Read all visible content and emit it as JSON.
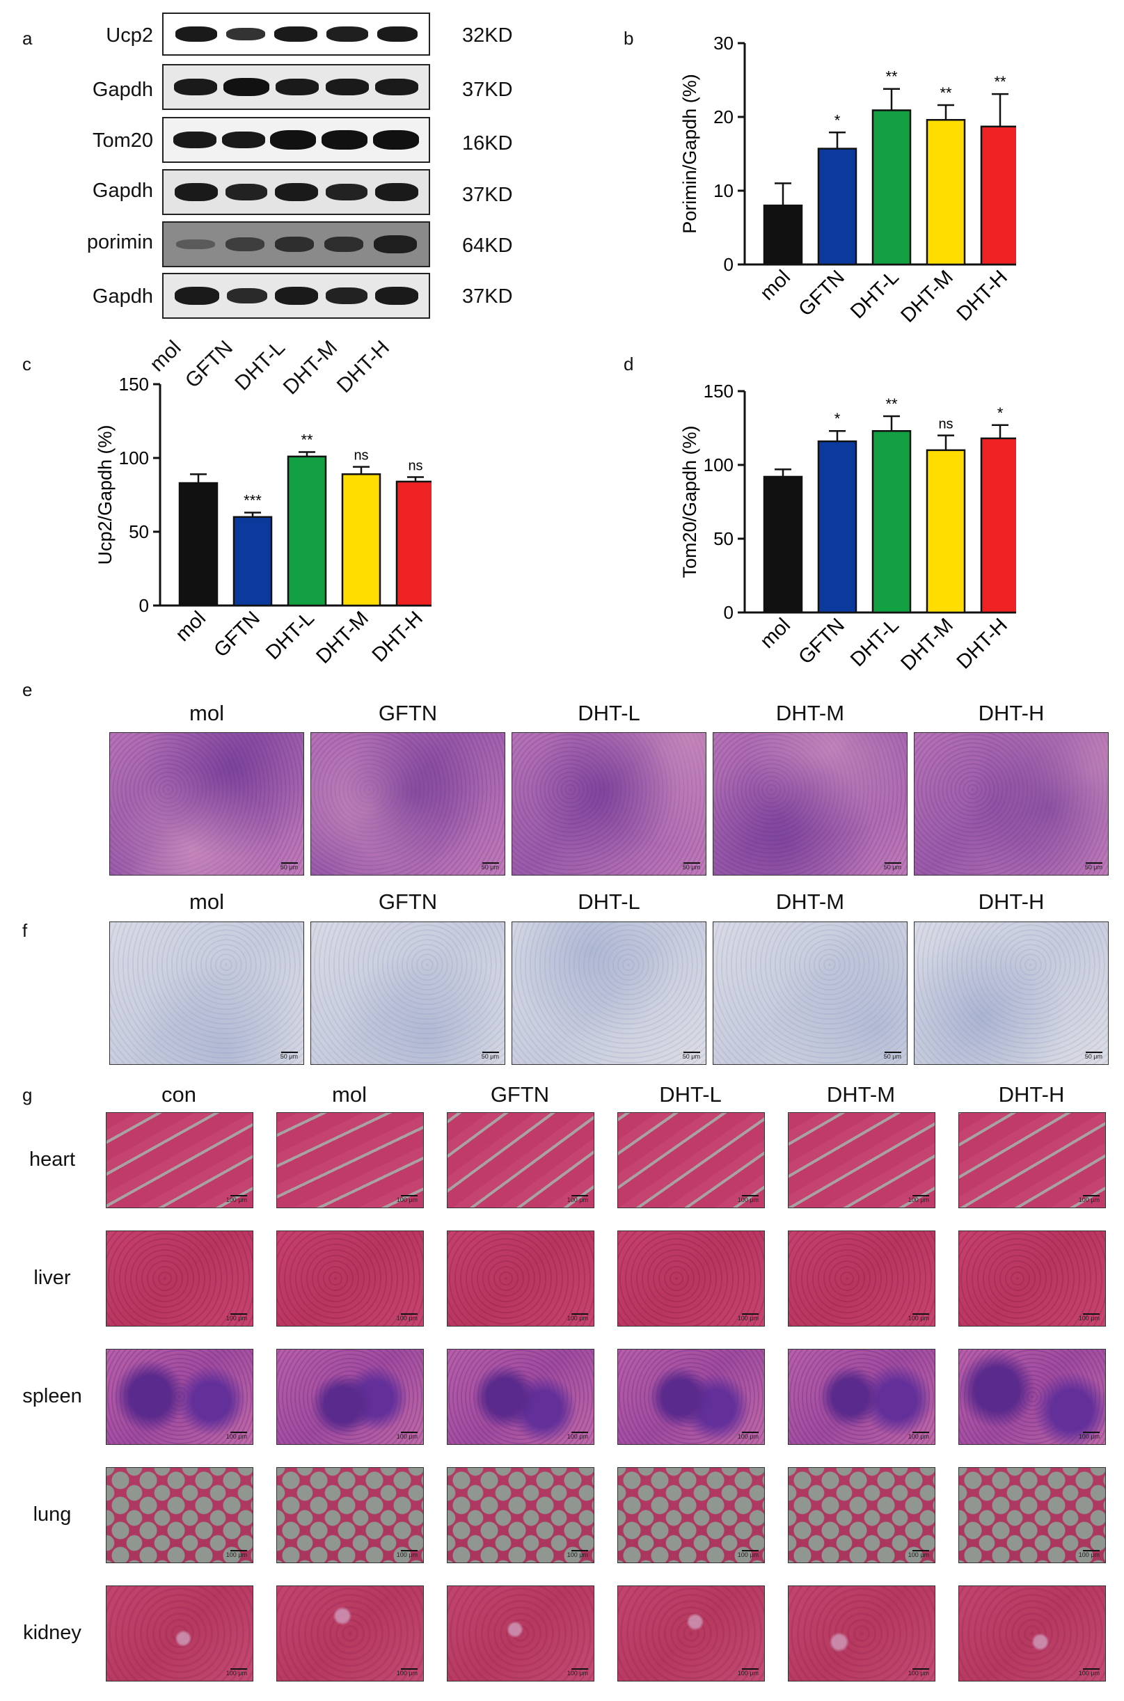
{
  "panels": {
    "a": "a",
    "b": "b",
    "c": "c",
    "d": "d",
    "e": "e",
    "f": "f",
    "g": "g"
  },
  "blot": {
    "rows": [
      {
        "name": "Ucp2",
        "kd": "32KD"
      },
      {
        "name": "Gapdh",
        "kd": "37KD"
      },
      {
        "name": "Tom20",
        "kd": "16KD"
      },
      {
        "name": "Gapdh",
        "kd": "37KD"
      },
      {
        "name": "porimin",
        "kd": "64KD"
      },
      {
        "name": "Gapdh",
        "kd": "37KD"
      }
    ],
    "lanes": [
      "mol",
      "GFTN",
      "DHT-L",
      "DHT-M",
      "DHT-H"
    ]
  },
  "colors": {
    "mol": "#111111",
    "GFTN": "#0b3a9c",
    "DHT-L": "#13a043",
    "DHT-M": "#ffdd00",
    "DHT-H": "#ee2222"
  },
  "chart_data": [
    {
      "type": "bar",
      "panel": "b",
      "categories": [
        "mol",
        "GFTN",
        "DHT-L",
        "DHT-M",
        "DHT-H"
      ],
      "values": [
        8,
        15.7,
        20.9,
        19.6,
        18.7
      ],
      "errors": [
        3,
        2.2,
        2.9,
        2.0,
        4.4
      ],
      "significance": [
        "",
        "*",
        "**",
        "**",
        "**"
      ],
      "ylabel": "Porimin/Gapdh (%)",
      "ylim": [
        0,
        30
      ],
      "yticks": [
        0,
        10,
        20,
        30
      ]
    },
    {
      "type": "bar",
      "panel": "c",
      "categories": [
        "mol",
        "GFTN",
        "DHT-L",
        "DHT-M",
        "DHT-H"
      ],
      "values": [
        83,
        60,
        101,
        89,
        84
      ],
      "errors": [
        6,
        3,
        3,
        5,
        3
      ],
      "significance": [
        "",
        "***",
        "**",
        "ns",
        "ns"
      ],
      "ylabel": "Ucp2/Gapdh (%)",
      "ylim": [
        0,
        150
      ],
      "yticks": [
        0,
        50,
        100,
        150
      ]
    },
    {
      "type": "bar",
      "panel": "d",
      "categories": [
        "mol",
        "GFTN",
        "DHT-L",
        "DHT-M",
        "DHT-H"
      ],
      "values": [
        92,
        116,
        123,
        110,
        118
      ],
      "errors": [
        5,
        7,
        10,
        10,
        9
      ],
      "significance": [
        "",
        "*",
        "**",
        "ns",
        "*"
      ],
      "ylabel": "Tom20/Gapdh (%)",
      "ylim": [
        0,
        150
      ],
      "yticks": [
        0,
        50,
        100,
        150
      ]
    }
  ],
  "panel_e": {
    "titles": [
      "mol",
      "GFTN",
      "DHT-L",
      "DHT-M",
      "DHT-H"
    ],
    "scale": "50 μm"
  },
  "panel_f": {
    "titles": [
      "mol",
      "GFTN",
      "DHT-L",
      "DHT-M",
      "DHT-H"
    ],
    "scale": "50 μm"
  },
  "panel_g": {
    "titles": [
      "con",
      "mol",
      "GFTN",
      "DHT-L",
      "DHT-M",
      "DHT-H"
    ],
    "rows": [
      "heart",
      "liver",
      "spleen",
      "lung",
      "kidney"
    ],
    "scale": "100 μm"
  }
}
